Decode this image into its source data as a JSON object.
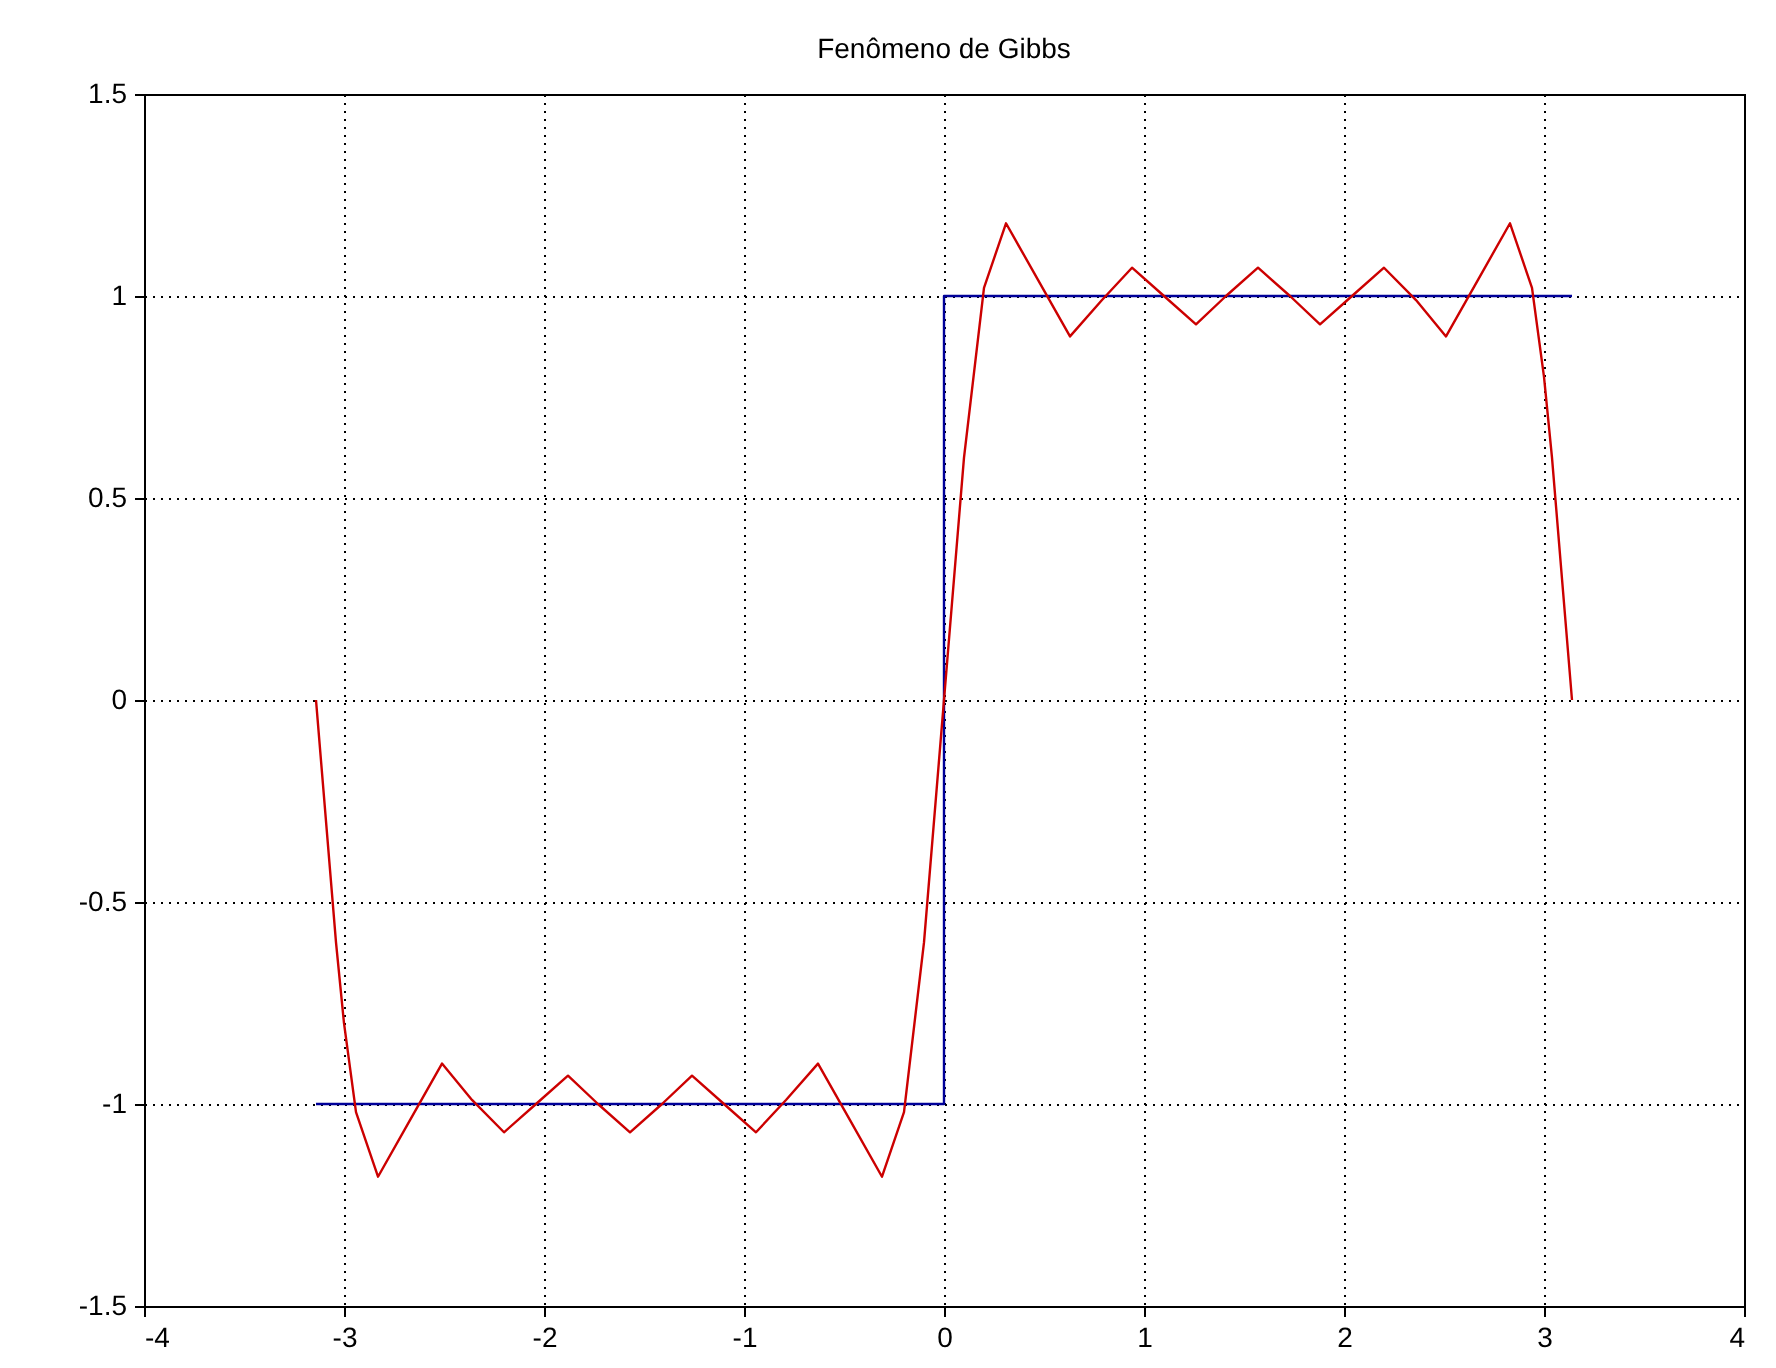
{
  "chart_data": {
    "type": "line",
    "title": "Fenômeno de Gibbs",
    "xlim": [
      -4,
      4
    ],
    "xticks": [
      -4,
      -3,
      -2,
      -1,
      0,
      1,
      2,
      3,
      4
    ],
    "ylim": [
      -1.5,
      1.5
    ],
    "yticks": [
      -1.5,
      -1,
      -0.5,
      0,
      0.5,
      1,
      1.5
    ],
    "grid": true,
    "series": [
      {
        "color": "#000099",
        "x": [
          -3.14,
          0,
          0,
          3.14
        ],
        "values": [
          -1,
          -1,
          1,
          1
        ]
      },
      {
        "color": "#cc0000",
        "x": [
          -3.14,
          -3.04,
          -3.0,
          -2.94,
          -2.83,
          -2.67,
          -2.51,
          -2.36,
          -2.2,
          -2.04,
          -1.88,
          -1.73,
          -1.57,
          -1.41,
          -1.26,
          -1.1,
          -0.94,
          -0.79,
          -0.63,
          -0.47,
          -0.31,
          -0.2,
          -0.1,
          0,
          0.1,
          0.2,
          0.31,
          0.47,
          0.63,
          0.79,
          0.94,
          1.1,
          1.26,
          1.41,
          1.57,
          1.73,
          1.88,
          2.04,
          2.2,
          2.36,
          2.51,
          2.67,
          2.83,
          2.94,
          3.0,
          3.04,
          3.14
        ],
        "values": [
          0,
          -0.6,
          -0.8,
          -1.02,
          -1.18,
          -1.04,
          -0.9,
          -0.99,
          -1.07,
          -1.0,
          -0.93,
          -1.0,
          -1.07,
          -1.0,
          -0.93,
          -1.0,
          -1.07,
          -0.99,
          -0.9,
          -1.04,
          -1.18,
          -1.02,
          -0.6,
          0,
          0.6,
          1.02,
          1.18,
          1.04,
          0.9,
          0.99,
          1.07,
          1.0,
          0.93,
          1.0,
          1.07,
          1.0,
          0.93,
          1.0,
          1.07,
          0.99,
          0.9,
          1.04,
          1.18,
          1.02,
          0.8,
          0.6,
          0
        ]
      }
    ]
  }
}
